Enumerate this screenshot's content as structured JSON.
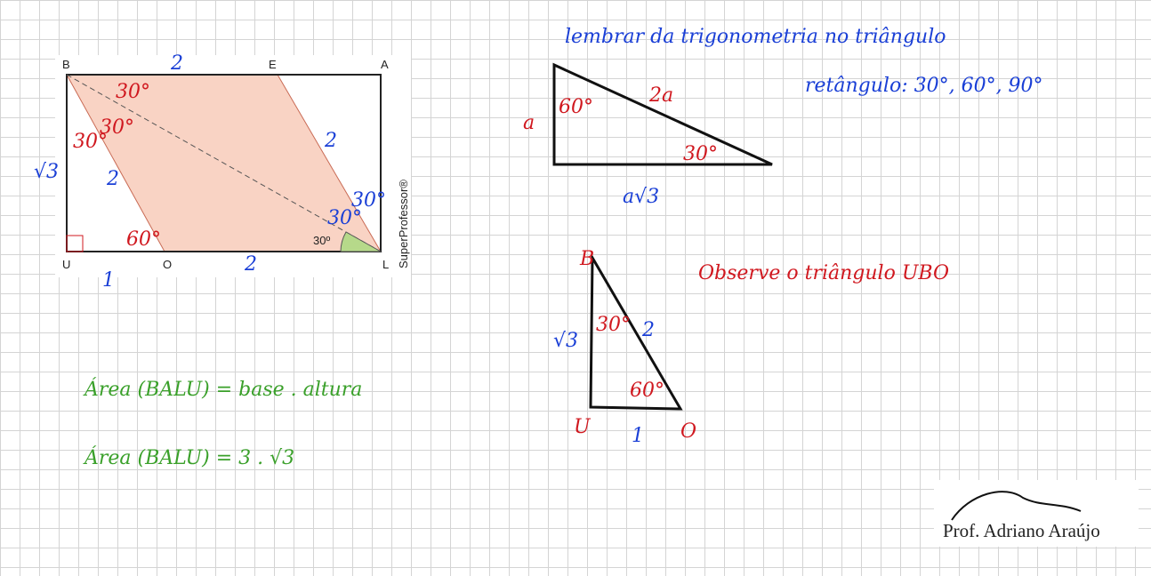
{
  "figure": {
    "vertices": [
      "B",
      "E",
      "A",
      "U",
      "O",
      "L"
    ],
    "angle_label": "30º",
    "credit": "SuperProfessor®",
    "marks": [
      "2",
      "√3",
      "2",
      "1",
      "2",
      "2",
      "30°",
      "30°",
      "30°",
      "60°",
      "30°",
      "30°"
    ]
  },
  "triangle_30_60_90": {
    "marks": [
      "a",
      "60°",
      "2a",
      "30°",
      "a√3"
    ]
  },
  "triangle_ubo": {
    "marks": [
      "B",
      "√3",
      "30°",
      "2",
      "60°",
      "U",
      "1",
      "O"
    ]
  },
  "notes": {
    "reminder_line1": "lembrar da trigonometria no triângulo",
    "reminder_line2": "retângulo: 30°, 60°, 90°",
    "observe": "Observe o triângulo UBO",
    "area_formula": "Área (BALU) = base . altura",
    "area_value": "Área (BALU) = 3 . √3"
  },
  "signature": "Prof. Adriano Araújo"
}
